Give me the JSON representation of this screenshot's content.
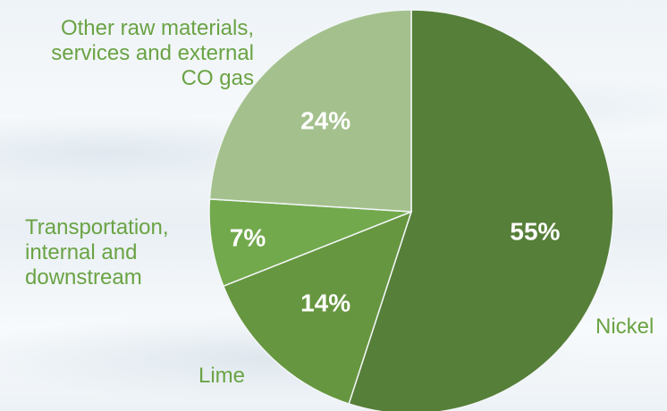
{
  "chart_data": {
    "type": "pie",
    "categories": [
      "Nickel",
      "Lime",
      "Transportation, internal and downstream",
      "Other raw materials, services and external CO gas"
    ],
    "values": [
      55,
      14,
      7,
      24
    ],
    "value_labels": [
      "55%",
      "14%",
      "7%",
      "24%"
    ],
    "colors": [
      "#567f39",
      "#66963f",
      "#72a94c",
      "#a4c18d"
    ],
    "start_angle_deg": 0,
    "direction": "clockwise",
    "label_color": "#6aa344"
  },
  "labels": {
    "other": [
      "Other raw materials,",
      "services and external",
      "CO gas"
    ],
    "transport": [
      "Transportation,",
      "internal and",
      "downstream"
    ],
    "lime": [
      "Lime"
    ],
    "nickel": [
      "Nickel"
    ]
  }
}
